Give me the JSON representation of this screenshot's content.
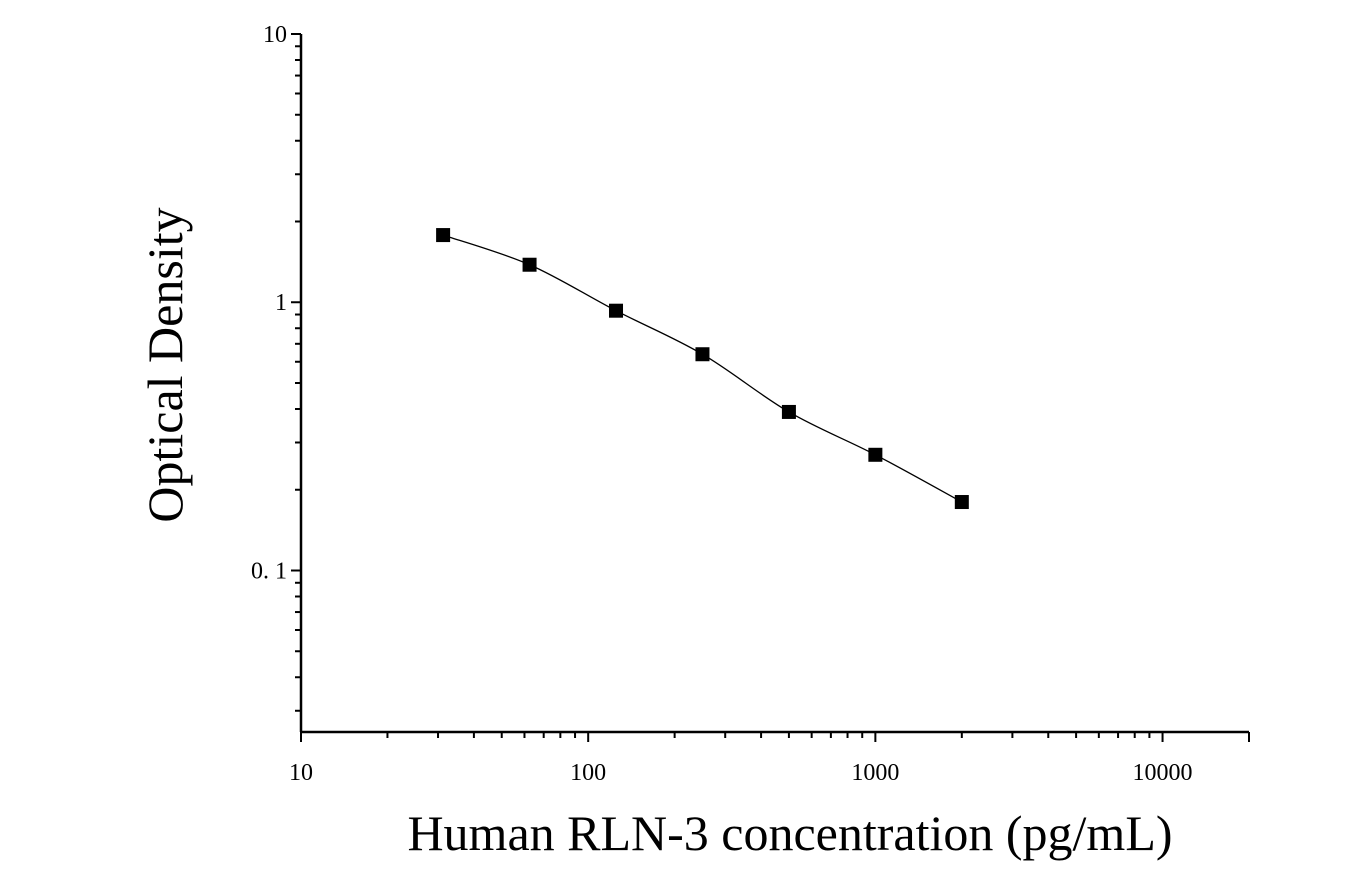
{
  "chart_data": {
    "type": "scatter",
    "title": "",
    "xlabel": "Human RLN-3 concentration (pg/mL)",
    "ylabel": "Optical Density",
    "x_scale": "log",
    "y_scale": "log",
    "xlim": [
      10,
      20000
    ],
    "ylim": [
      0.025,
      10
    ],
    "x_ticks": [
      {
        "value": 10,
        "label": "10"
      },
      {
        "value": 100,
        "label": "100"
      },
      {
        "value": 1000,
        "label": "1000"
      },
      {
        "value": 10000,
        "label": "10000"
      }
    ],
    "y_ticks": [
      {
        "value": 0.1,
        "label": "0. 1"
      },
      {
        "value": 1,
        "label": "1"
      },
      {
        "value": 10,
        "label": "10"
      }
    ],
    "grid": false,
    "legend": "none",
    "series": [
      {
        "marker": "square",
        "color": "#000000",
        "fit_curve": true,
        "points": [
          {
            "x": 31.25,
            "y": 1.78
          },
          {
            "x": 62.5,
            "y": 1.38
          },
          {
            "x": 125,
            "y": 0.93
          },
          {
            "x": 250,
            "y": 0.64
          },
          {
            "x": 500,
            "y": 0.39
          },
          {
            "x": 1000,
            "y": 0.27
          },
          {
            "x": 2000,
            "y": 0.18
          }
        ]
      }
    ]
  }
}
